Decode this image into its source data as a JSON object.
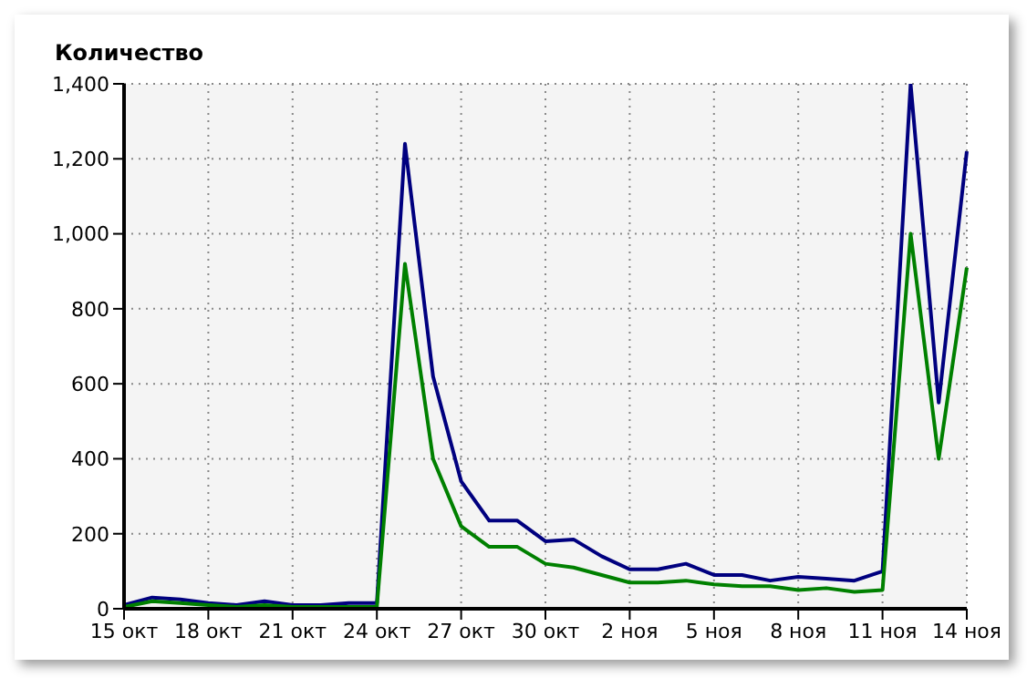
{
  "chart_data": {
    "type": "line",
    "title": "Количество",
    "categories": [
      "15 окт",
      null,
      null,
      "18 окт",
      null,
      null,
      "21 окт",
      null,
      null,
      "24 окт",
      null,
      null,
      "27 окт",
      null,
      null,
      "30 окт",
      null,
      null,
      "2 ноя",
      null,
      null,
      "5 ноя",
      null,
      null,
      "8 ноя",
      null,
      null,
      "11 ноя",
      null,
      null,
      "14 ноя"
    ],
    "series": [
      {
        "color": "#00007f",
        "values": [
          10,
          30,
          25,
          15,
          10,
          20,
          10,
          10,
          15,
          15,
          1240,
          620,
          340,
          235,
          235,
          180,
          185,
          140,
          105,
          105,
          120,
          90,
          90,
          75,
          85,
          80,
          75,
          100,
          1400,
          550,
          1220
        ]
      },
      {
        "color": "#008000",
        "values": [
          5,
          20,
          15,
          10,
          5,
          10,
          5,
          5,
          5,
          5,
          920,
          400,
          220,
          165,
          165,
          120,
          110,
          90,
          70,
          70,
          75,
          65,
          60,
          60,
          50,
          55,
          45,
          50,
          1000,
          400,
          910
        ]
      }
    ],
    "ylim": [
      0,
      1400
    ],
    "yticks": [
      {
        "value": 0,
        "label": "0"
      },
      {
        "value": 200,
        "label": "200"
      },
      {
        "value": 400,
        "label": "400"
      },
      {
        "value": 600,
        "label": "600"
      },
      {
        "value": 800,
        "label": "800"
      },
      {
        "value": 1000,
        "label": "1,000"
      },
      {
        "value": 1200,
        "label": "1,200"
      },
      {
        "value": 1400,
        "label": "1,400"
      }
    ],
    "grid": true,
    "legend": false,
    "marker": "none",
    "line_style": "solid"
  }
}
